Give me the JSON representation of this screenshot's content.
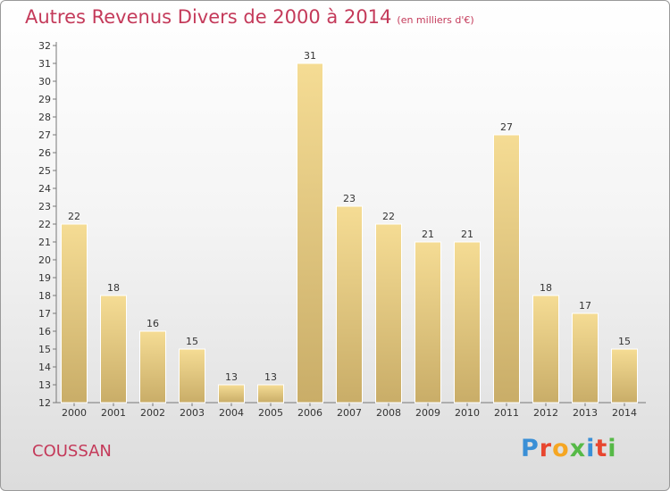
{
  "title": "Autres Revenus Divers de 2000 à 2014",
  "subtitle": "(en milliers d'€)",
  "place": "COUSSAN",
  "logo": {
    "letters": [
      "P",
      "r",
      "o",
      "x",
      "i",
      "t",
      "i"
    ],
    "colors": [
      "#3a8fd6",
      "#e8462f",
      "#f5a623",
      "#56b947",
      "#3a8fd6",
      "#e8462f",
      "#56b947"
    ]
  },
  "colors": {
    "bar_top": "#f5dc94",
    "bar_bottom": "#c9ad68",
    "title": "#c43a5a"
  },
  "chart_data": {
    "type": "bar",
    "categories": [
      "2000",
      "2001",
      "2002",
      "2003",
      "2004",
      "2005",
      "2006",
      "2007",
      "2008",
      "2009",
      "2010",
      "2011",
      "2012",
      "2013",
      "2014"
    ],
    "values": [
      22,
      18,
      16,
      15,
      13,
      13,
      31,
      23,
      22,
      21,
      21,
      27,
      18,
      17,
      15
    ],
    "title": "Autres Revenus Divers de 2000 à 2014",
    "ylim": [
      12,
      32
    ],
    "yticks": [
      12,
      13,
      14,
      15,
      16,
      17,
      18,
      19,
      20,
      21,
      22,
      23,
      24,
      25,
      26,
      27,
      28,
      29,
      30,
      31,
      32
    ],
    "grid": false
  }
}
